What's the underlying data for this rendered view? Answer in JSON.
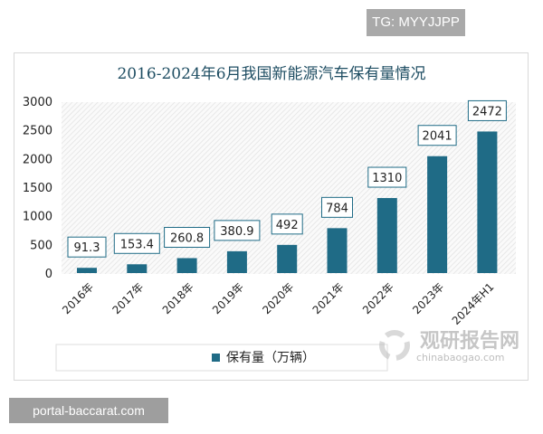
{
  "overlay_top": "TG: MYYJJPP",
  "overlay_bottom": "portal-baccarat.com",
  "watermark": {
    "name": "观研报告网",
    "url": "chinabaogao.com"
  },
  "colors": {
    "bar": "#1f6b86",
    "title": "#1f4e63",
    "label_border": "#1f6b86"
  },
  "chart_data": {
    "type": "bar",
    "title": "2016-2024年6月我国新能源汽车保有量情况",
    "categories": [
      "2016年",
      "2017年",
      "2018年",
      "2019年",
      "2020年",
      "2021年",
      "2022年",
      "2023年",
      "2024年H1"
    ],
    "series": [
      {
        "name": "保有量（万辆）",
        "values": [
          91.3,
          153.4,
          260.8,
          380.9,
          492,
          784,
          1310,
          2041,
          2472
        ]
      }
    ],
    "data_labels": [
      "91.3",
      "153.4",
      "260.8",
      "380.9",
      "492",
      "784",
      "1310",
      "2041",
      "2472"
    ],
    "yticks": [
      "0",
      "500",
      "1000",
      "1500",
      "2000",
      "2500",
      "3000"
    ],
    "ylim": [
      0,
      3000
    ],
    "grid": false,
    "legend_position": "bottom"
  }
}
